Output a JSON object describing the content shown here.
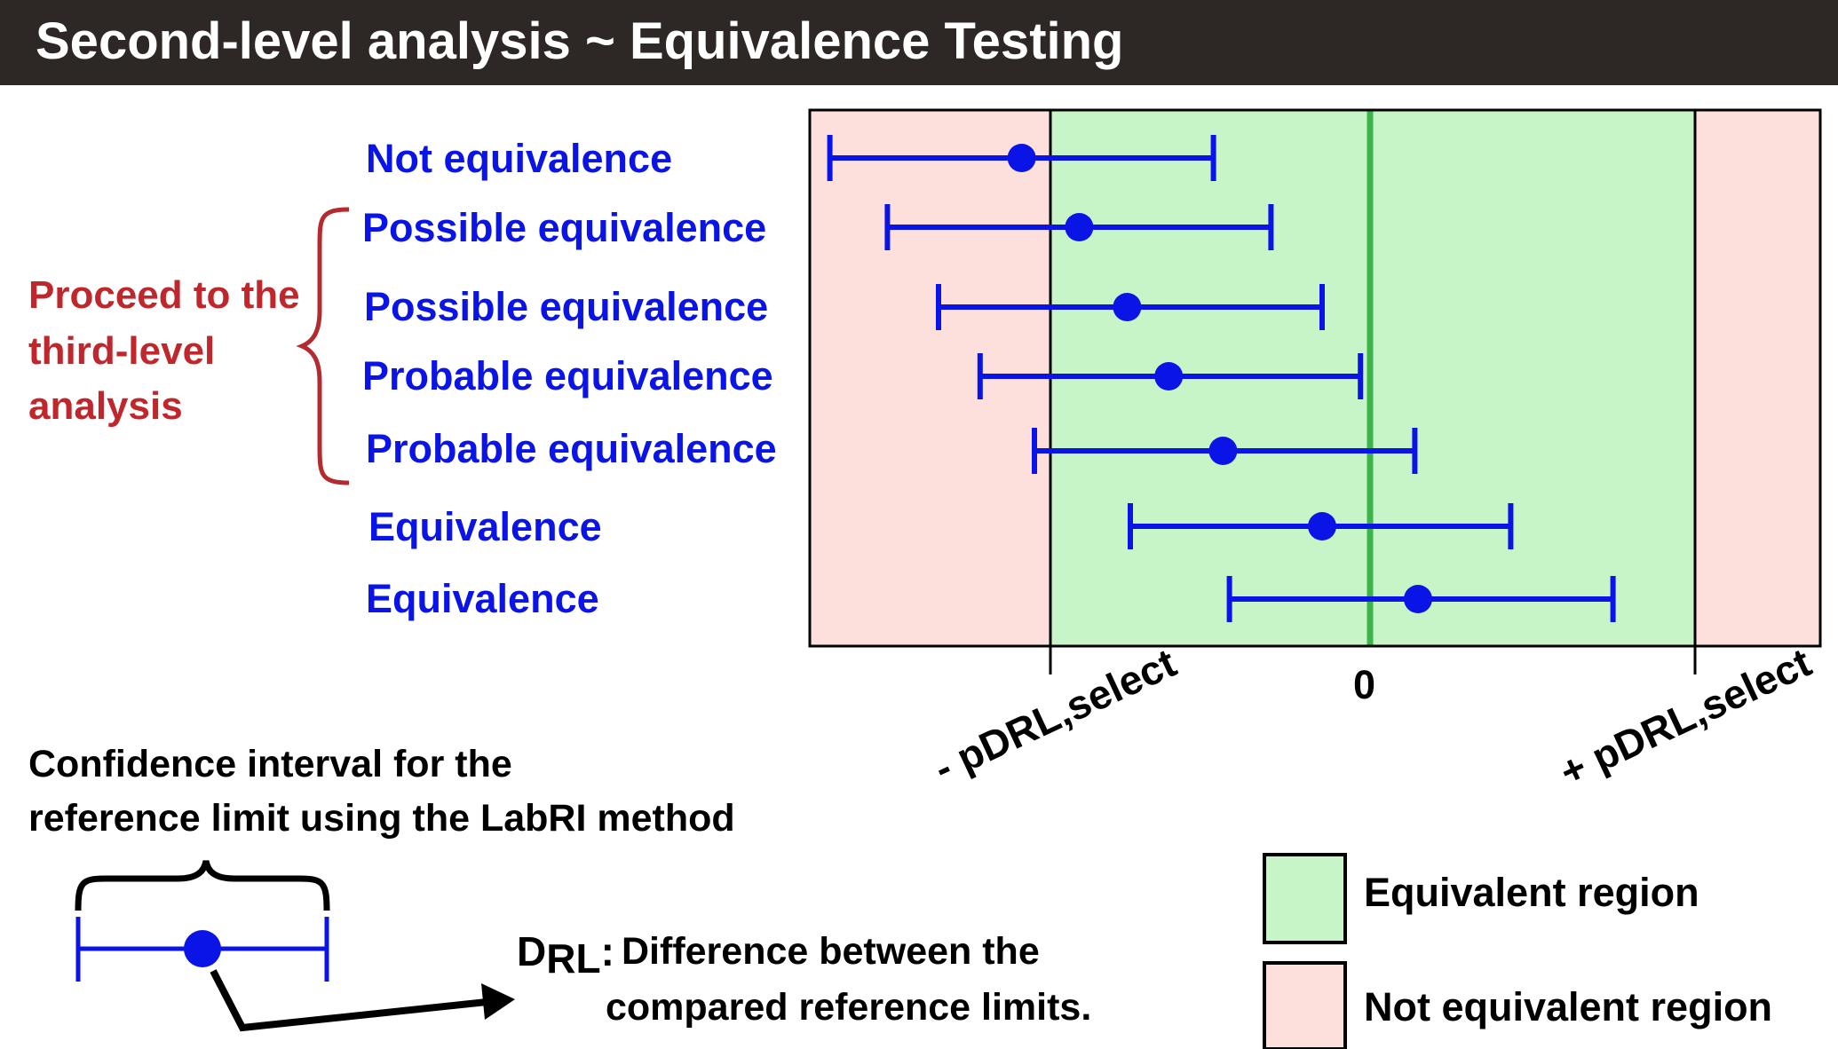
{
  "title": "Second-level analysis ~ Equivalence Testing",
  "colors": {
    "title_bar": "#2d2725",
    "equivalent_region": "#c8f5c8",
    "not_equivalent_region": "#fde0dc",
    "zero_line": "#3bb54a",
    "interval": "#0a14e6",
    "proceed_text": "#c0272d",
    "bracket": "#b32a2f"
  },
  "rows": [
    {
      "label": "Not equivalence"
    },
    {
      "label": "Possible equivalence"
    },
    {
      "label": "Possible equivalence"
    },
    {
      "label": "Probable equivalence"
    },
    {
      "label": "Probable equivalence"
    },
    {
      "label": "Equivalence"
    },
    {
      "label": "Equivalence"
    }
  ],
  "proceed_note": [
    "Proceed to the",
    "third-level",
    "analysis"
  ],
  "axis_labels": {
    "minus_limit": "- pDRL,select",
    "zero": "0",
    "plus_limit": "+ pDRL,select"
  },
  "chart_data": {
    "type": "forest",
    "x_ticks": [
      "- pDRL,select",
      "0",
      "+ pDRL,select"
    ],
    "intervals_in_limit_units": [
      {
        "label": "Not equivalence",
        "low": -1.69,
        "point": -1.09,
        "high": -0.49
      },
      {
        "label": "Possible equivalence",
        "low": -1.51,
        "point": -0.91,
        "high": -0.31
      },
      {
        "label": "Possible equivalence",
        "low": -1.35,
        "point": -0.76,
        "high": -0.15
      },
      {
        "label": "Probable equivalence",
        "low": -1.22,
        "point": -0.63,
        "high": -0.03
      },
      {
        "label": "Probable equivalence",
        "low": -1.05,
        "point": -0.46,
        "high": 0.14
      },
      {
        "label": "Equivalence",
        "low": -0.75,
        "point": -0.15,
        "high": 0.44
      },
      {
        "label": "Equivalence",
        "low": -0.44,
        "point": 0.15,
        "high": 0.76
      }
    ],
    "xlim": [
      -1.75,
      1.4
    ]
  },
  "ci_caption": [
    "Confidence interval for the",
    "reference limit using the LabRI method"
  ],
  "drl_symbol": "D",
  "drl_subscript": "RL",
  "drl_colon": ":",
  "drl_definition": [
    "Difference between the",
    "compared reference limits."
  ],
  "legend": [
    {
      "label": "Equivalent region",
      "color_key": "equivalent_region"
    },
    {
      "label": "Not equivalent region",
      "color_key": "not_equivalent_region"
    }
  ]
}
